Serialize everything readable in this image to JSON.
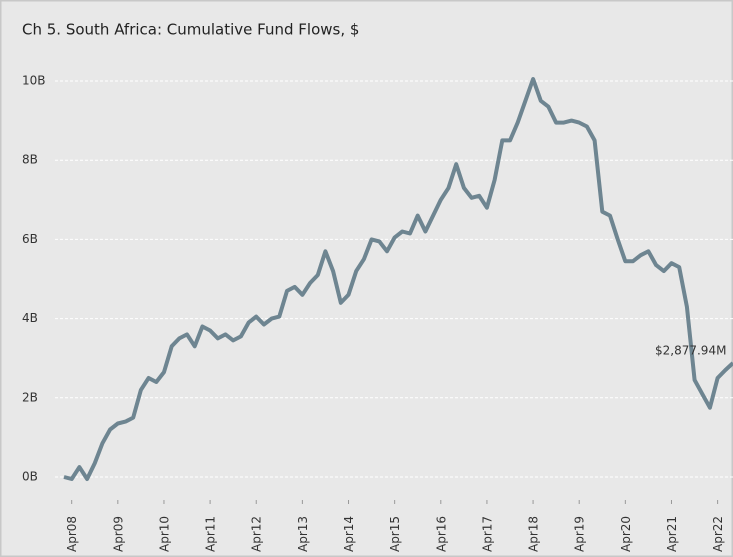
{
  "chart_data": {
    "type": "line",
    "title": "Ch 5. South Africa:  Cumulative Fund Flows, $",
    "categories": [
      null,
      "Apr08",
      null,
      null,
      null,
      null,
      null,
      "Apr09",
      null,
      null,
      null,
      null,
      null,
      "Apr10",
      null,
      null,
      null,
      null,
      null,
      "Apr11",
      null,
      null,
      null,
      null,
      null,
      "Apr12",
      null,
      null,
      null,
      null,
      null,
      "Apr13",
      null,
      null,
      null,
      null,
      null,
      "Apr14",
      null,
      null,
      null,
      null,
      null,
      "Apr15",
      null,
      null,
      null,
      null,
      null,
      "Apr16",
      null,
      null,
      null,
      null,
      null,
      "Apr17",
      null,
      null,
      null,
      null,
      null,
      "Apr18",
      null,
      null,
      null,
      null,
      null,
      "Apr19",
      null,
      null,
      null,
      null,
      null,
      "Apr20",
      null,
      null,
      null,
      null,
      null,
      "Apr21",
      null,
      null,
      null,
      null,
      null,
      "Apr22",
      null,
      null
    ],
    "series": [
      {
        "name": "Cumulative Fund Flows",
        "color": "#6e8591",
        "values": [
          0.0,
          -0.05,
          0.25,
          -0.05,
          0.35,
          0.85,
          1.2,
          1.35,
          1.4,
          1.5,
          2.2,
          2.5,
          2.4,
          2.65,
          3.3,
          3.5,
          3.6,
          3.3,
          3.8,
          3.7,
          3.5,
          3.6,
          3.45,
          3.55,
          3.9,
          4.05,
          3.85,
          4.0,
          4.05,
          4.7,
          4.8,
          4.6,
          4.9,
          5.1,
          5.7,
          5.2,
          4.4,
          4.6,
          5.2,
          5.5,
          6.0,
          5.95,
          5.7,
          6.05,
          6.2,
          6.15,
          6.6,
          6.2,
          6.6,
          7.0,
          7.3,
          7.9,
          7.3,
          7.05,
          7.1,
          6.8,
          7.5,
          8.5,
          8.5,
          8.95,
          9.5,
          10.05,
          9.5,
          9.35,
          8.95,
          8.95,
          9.0,
          8.95,
          8.85,
          8.5,
          6.7,
          6.6,
          6.0,
          5.45,
          5.45,
          5.6,
          5.7,
          5.35,
          5.2,
          5.4,
          5.3,
          4.3,
          2.45,
          2.1,
          1.75,
          2.5,
          2.7,
          2.87794
        ],
        "value_labels": [
          null,
          null,
          null,
          null,
          null,
          null,
          null,
          null,
          null,
          null,
          null,
          null,
          null,
          null,
          null,
          null,
          null,
          null,
          null,
          null,
          null,
          null,
          null,
          null,
          null,
          null,
          null,
          null,
          null,
          null,
          null,
          null,
          null,
          null,
          null,
          null,
          null,
          null,
          null,
          null,
          null,
          null,
          null,
          null,
          null,
          null,
          null,
          null,
          null,
          null,
          null,
          null,
          null,
          null,
          null,
          null,
          null,
          null,
          null,
          null,
          null,
          null,
          null,
          null,
          null,
          null,
          null,
          null,
          null,
          null,
          null,
          null,
          null,
          null,
          null,
          null,
          null,
          null,
          null,
          null,
          null,
          null,
          null,
          null,
          null,
          null,
          null,
          "$2,877.94M"
        ]
      }
    ],
    "ylim": [
      -0.3,
      10.5
    ],
    "yticks": [
      {
        "value": 0,
        "label": "0B"
      },
      {
        "value": 2,
        "label": "2B"
      },
      {
        "value": 4,
        "label": "4B"
      },
      {
        "value": 6,
        "label": "6B"
      },
      {
        "value": 8,
        "label": "8B"
      },
      {
        "value": 10,
        "label": "10B"
      }
    ],
    "grid": true
  }
}
